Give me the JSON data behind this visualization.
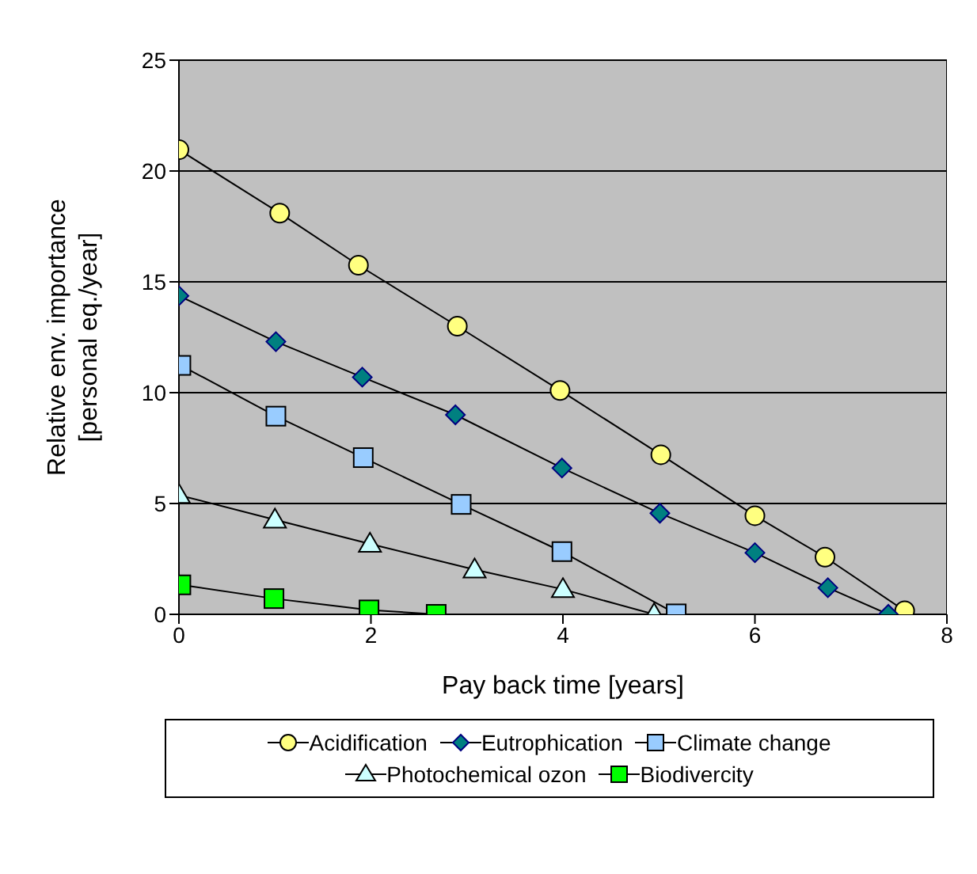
{
  "chart_data": {
    "type": "line",
    "xlabel": "Pay back time [years]",
    "ylabel": "Relative env. importance\n[personal eq./year]",
    "xlim": [
      0,
      8
    ],
    "xticks": [
      0,
      2,
      4,
      6,
      8
    ],
    "ylim": [
      0,
      25
    ],
    "yticks": [
      0,
      5,
      10,
      15,
      20,
      25
    ],
    "grid": "y",
    "legend": "bottom",
    "line_style": "solid",
    "series": [
      {
        "name": "Acidification",
        "color": "#ffff80",
        "marker": "circle",
        "x": [
          0,
          1.05,
          1.87,
          2.9,
          3.97,
          5.02,
          6.0,
          6.73,
          7.56
        ],
        "values": [
          20.96,
          18.1,
          15.75,
          13.0,
          10.1,
          7.2,
          4.45,
          2.58,
          0.16
        ]
      },
      {
        "name": "Eutrophication",
        "color": "#008080",
        "marker": "diamond",
        "x": [
          0,
          1.01,
          1.91,
          2.88,
          3.99,
          5.01,
          6.0,
          6.76,
          7.39
        ],
        "values": [
          14.37,
          12.3,
          10.7,
          9.0,
          6.6,
          4.56,
          2.78,
          1.2,
          0
        ]
      },
      {
        "name": "Climate change",
        "color": "#99ccff",
        "marker": "square",
        "x": [
          0.02,
          1.01,
          1.92,
          2.94,
          3.99,
          5.18
        ],
        "values": [
          11.23,
          8.94,
          7.07,
          4.96,
          2.83,
          0.02
        ]
      },
      {
        "name": "Photochemical ozon",
        "color": "#ccffff",
        "marker": "triangle",
        "x": [
          0,
          1.0,
          1.99,
          3.08,
          4.0,
          4.95
        ],
        "values": [
          5.38,
          4.27,
          3.18,
          2.02,
          1.13,
          0
        ]
      },
      {
        "name": "Biodivercity",
        "color": "#00ff00",
        "marker": "square",
        "x": [
          0.02,
          0.99,
          1.98,
          2.68
        ],
        "values": [
          1.33,
          0.71,
          0.2,
          0
        ]
      }
    ]
  }
}
